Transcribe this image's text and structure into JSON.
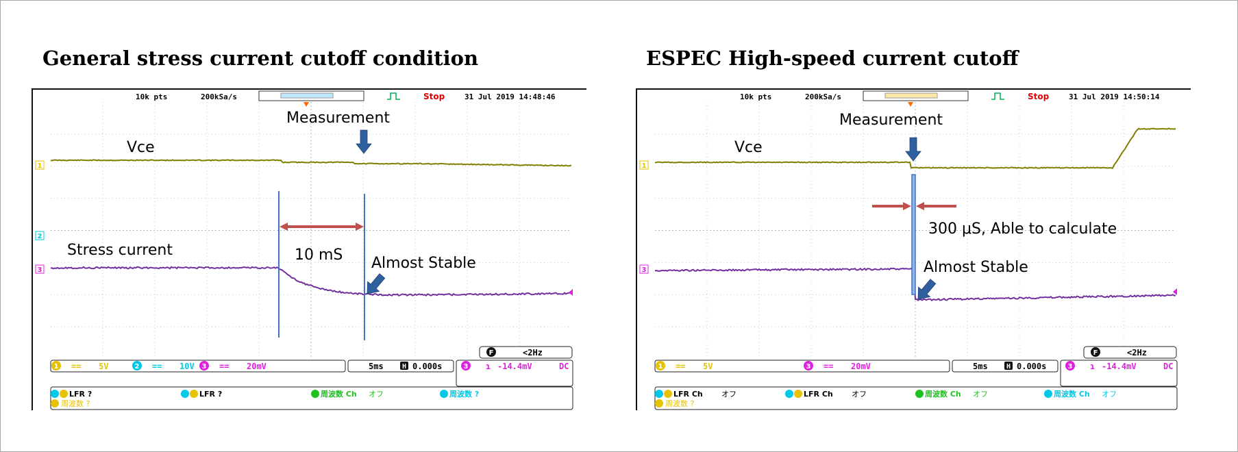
{
  "panels": [
    {
      "title": "General stress current cutoff condition",
      "header": {
        "points": "10k pts",
        "rate": "200kSa/s",
        "status": "Stop",
        "datetime": "31 Jul 2019 14:48:46"
      },
      "labels": {
        "vce": "Vce",
        "measurement": "Measurement",
        "stress": "Stress current",
        "interval": "10 mS",
        "stable": "Almost Stable"
      },
      "trigger_freq": "<2Hz",
      "markers": {
        "ch1": "1",
        "ch2": "2",
        "ch3": "3",
        "trig": "F"
      },
      "channels": [
        {
          "num": "1",
          "coupling": "==",
          "scale": "5V",
          "color": "#e6c200"
        },
        {
          "num": "2",
          "coupling": "==",
          "scale": "10V",
          "color": "#00c8e6"
        },
        {
          "num": "3",
          "coupling": "==",
          "scale": "20mV",
          "color": "#e020e0"
        }
      ],
      "timebase": {
        "per_div": "5ms",
        "delay_icon": "H",
        "delay": "0.000s"
      },
      "trigger": {
        "ch": "3",
        "slope": "ɿ",
        "level": "-14.4mV",
        "coupling": "DC"
      },
      "meas": {
        "a1_label": "LFR ?",
        "a2_label": "LFR ?",
        "a3_label": "周波数 Ch",
        "a3_value": "オフ",
        "a4_label": "周波数 ?",
        "b1_label": "周波数 ?"
      }
    },
    {
      "title": "ESPEC High-speed current cutoff",
      "header": {
        "points": "10k pts",
        "rate": "200kSa/s",
        "status": "Stop",
        "datetime": "31 Jul 2019 14:50:14"
      },
      "labels": {
        "vce": "Vce",
        "measurement": "Measurement",
        "interval": "300 μS,  Able to calculate",
        "stable": "Almost Stable"
      },
      "trigger_freq": "<2Hz",
      "markers": {
        "ch1": "1",
        "ch3": "3",
        "trig": "F"
      },
      "channels": [
        {
          "num": "1",
          "coupling": "==",
          "scale": "5V",
          "color": "#e6c200"
        },
        {
          "num": "3",
          "coupling": "==",
          "scale": "20mV",
          "color": "#e020e0"
        }
      ],
      "timebase": {
        "per_div": "5ms",
        "delay_icon": "H",
        "delay": "0.000s"
      },
      "trigger": {
        "ch": "3",
        "slope": "ɿ",
        "level": "-14.4mV",
        "coupling": "DC"
      },
      "meas": {
        "a1_label": "LFR Ch",
        "a1_value": "オフ",
        "a2_label": "LFR Ch",
        "a2_value": "オフ",
        "a3_label": "周波数 Ch",
        "a3_value": "オフ",
        "a4_label": "周波数 Ch",
        "a4_value": "オフ",
        "b1_label": "周波数 ?"
      }
    }
  ],
  "colors": {
    "vce_trace": "#7f7f00",
    "current_trace": "#7030a0",
    "cursor": "#4472c4",
    "interval_arrow": "#c0504d",
    "pointer_arrow": "#2e5f9e",
    "ch1": "#e6c200",
    "ch2": "#00c8e6",
    "ch3": "#e020e0",
    "ch4": "#20c020",
    "stop": "#e00000",
    "run_icon": "#00b050",
    "marker": "#ff6a00"
  }
}
